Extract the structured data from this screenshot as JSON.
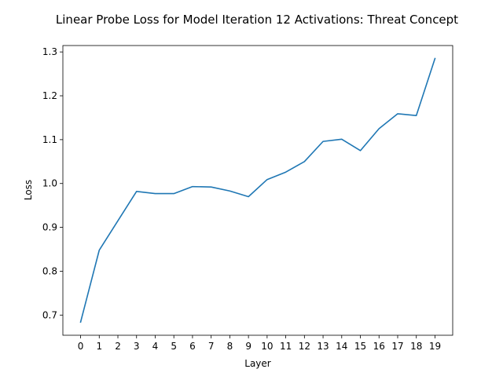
{
  "chart_data": {
    "type": "line",
    "title": "Linear Probe Loss for Model Iteration 12 Activations: Threat Concept",
    "xlabel": "Layer",
    "ylabel": "Loss",
    "x": [
      0,
      1,
      2,
      3,
      4,
      5,
      6,
      7,
      8,
      9,
      10,
      11,
      12,
      13,
      14,
      15,
      16,
      17,
      18,
      19
    ],
    "series": [
      {
        "color": "#1f77b4",
        "values": [
          0.684,
          0.848,
          0.915,
          0.982,
          0.977,
          0.977,
          0.993,
          0.992,
          0.983,
          0.97,
          1.009,
          1.026,
          1.05,
          1.096,
          1.101,
          1.075,
          1.125,
          1.159,
          1.155,
          1.285
        ]
      }
    ],
    "xticks": [
      "0",
      "1",
      "2",
      "3",
      "4",
      "5",
      "6",
      "7",
      "8",
      "9",
      "10",
      "11",
      "12",
      "13",
      "14",
      "15",
      "16",
      "17",
      "18",
      "19"
    ],
    "yticks": [
      "0.7",
      "0.8",
      "0.9",
      "1.0",
      "1.1",
      "1.2",
      "1.3"
    ],
    "ytick_values": [
      0.7,
      0.8,
      0.9,
      1.0,
      1.1,
      1.2,
      1.3
    ],
    "xlim": [
      -0.95,
      19.95
    ],
    "ylim": [
      0.654,
      1.3146
    ],
    "grid": false,
    "legend": "none"
  }
}
